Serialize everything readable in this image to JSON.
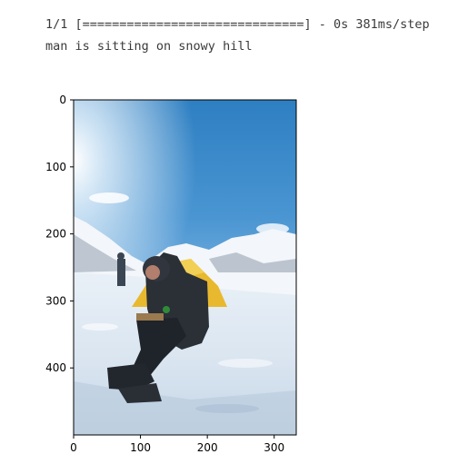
{
  "output": {
    "progress": "1/1 [==============================] - 0s 381ms/step",
    "caption": "man is sitting on snowy hill"
  },
  "chart_data": {
    "type": "image",
    "title": "",
    "xlabel": "",
    "ylabel": "",
    "xlim": [
      0,
      333
    ],
    "ylim": [
      500,
      0
    ],
    "x_ticks": [
      0,
      100,
      200,
      300
    ],
    "y_ticks": [
      0,
      100,
      200,
      300,
      400
    ],
    "x_tick_labels": [
      "0",
      "100",
      "200",
      "300"
    ],
    "y_tick_labels": [
      "0",
      "100",
      "200",
      "300",
      "400"
    ],
    "grid": false
  }
}
